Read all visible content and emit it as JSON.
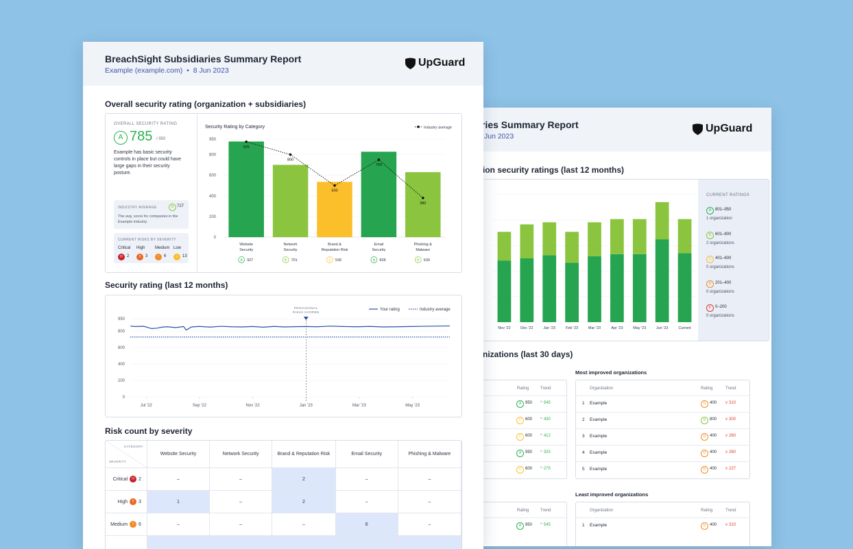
{
  "colors": {
    "accent": "#3d53a8",
    "grade_a": "#2bb04c",
    "grade_b": "#8bc53f",
    "grade_c": "#fbbf2b",
    "grade_d": "#f08c28",
    "grade_f": "#e03a30",
    "bar_dark": "#26a44f",
    "bar_light": "#8bc53f",
    "bar_yellow": "#fbbf2b",
    "line": "#2750a5"
  },
  "front": {
    "title": "BreachSight Subsidiaries Summary Report",
    "subtitle_company": "Example (example.com)",
    "subtitle_sep": "•",
    "subtitle_date": "8 Jun 2023",
    "logo": "UpGuard",
    "section1_title": "Overall security rating (organization + subsidiaries)",
    "overall": {
      "label": "OVERALL SECURITY RATING",
      "grade": "A",
      "score": "785",
      "max": "/ 950",
      "description": "Example has basic security controls in place but could have large gaps in their security posture.",
      "industry_label": "INDUSTRY AVERAGE",
      "industry_grade": "B",
      "industry_score": "727",
      "industry_desc": "The avg. score for companies in the Example industry.",
      "risks_label": "CURRENT RISKS BY SEVERITY",
      "risks": [
        {
          "name": "Critical",
          "icon": "!!!",
          "count": "2"
        },
        {
          "name": "High",
          "icon": "!!",
          "count": "3"
        },
        {
          "name": "Medium",
          "icon": "!",
          "count": "6"
        },
        {
          "name": "Low",
          "icon": "i",
          "count": "13"
        }
      ]
    },
    "section2_title": "Security rating (last 12 months)",
    "section3_title": "Risk count by severity",
    "risk_table": {
      "corner_category": "CATEGORY",
      "corner_severity": "SEVERITY",
      "columns": [
        "Website Security",
        "Network Security",
        "Brand & Reputation Risk",
        "Email Security",
        "Phishing & Malware"
      ],
      "rows": [
        {
          "label": "Critical",
          "icon": "!!!",
          "count": "2",
          "cells": [
            "–",
            "–",
            "2",
            "–",
            "–"
          ]
        },
        {
          "label": "High",
          "icon": "!!",
          "count": "3",
          "cells": [
            "1",
            "–",
            "2",
            "–",
            "–"
          ]
        },
        {
          "label": "Medium",
          "icon": "!",
          "count": "6",
          "cells": [
            "–",
            "–",
            "–",
            "6",
            "–"
          ]
        }
      ]
    }
  },
  "chart_data": [
    {
      "type": "bar",
      "title": "Security Rating by Category",
      "legend": "Industry average",
      "categories": [
        "Website Security",
        "Network Security",
        "Brand & Reputation Risk",
        "Email Security",
        "Phishing & Malware"
      ],
      "values": [
        927,
        701,
        536,
        828,
        630
      ],
      "industry_average": [
        925,
        800,
        500,
        750,
        380
      ],
      "industry_labels": [
        "925",
        "800",
        "500",
        "750",
        "380"
      ],
      "grades": [
        "A",
        "B",
        "C",
        "A",
        "B"
      ],
      "score_labels": [
        "927",
        "701",
        "536",
        "828",
        "630"
      ],
      "bar_colors": [
        "#26a44f",
        "#8bc53f",
        "#fbbf2b",
        "#26a44f",
        "#8bc53f"
      ],
      "ylim": [
        0,
        950
      ],
      "yticks": [
        0,
        200,
        400,
        600,
        800,
        950
      ]
    },
    {
      "type": "line",
      "title": "Security rating (last 12 months)",
      "legend_your": "Your rating",
      "legend_industry": "Industry average",
      "annotation": "PROVISIONAL RISKS SCORED",
      "annotation_x": 6.6,
      "xticks": [
        0.6,
        2.6,
        4.6,
        6.6,
        8.6,
        10.6
      ],
      "xtick_labels": [
        "Jul '22",
        "Sep '22",
        "Nov '22",
        "Jan '23",
        "Mar '23",
        "May '23"
      ],
      "yticks": [
        0,
        200,
        400,
        600,
        800,
        950
      ],
      "ylim": [
        0,
        950
      ],
      "xlim": [
        0,
        12
      ],
      "x": [
        0,
        0.2,
        0.5,
        0.8,
        1.0,
        1.2,
        1.4,
        1.7,
        2.0,
        2.1,
        2.3,
        2.6,
        3.0,
        3.4,
        3.8,
        4.2,
        4.6,
        5.0,
        5.4,
        5.8,
        6.2,
        6.6,
        7.0,
        7.5,
        8.0,
        8.5,
        9.0,
        9.5,
        10.0,
        10.5,
        11.0,
        11.5,
        12.0
      ],
      "your_rating": [
        860,
        855,
        858,
        830,
        835,
        848,
        852,
        842,
        855,
        812,
        850,
        856,
        848,
        858,
        852,
        850,
        855,
        847,
        856,
        850,
        853,
        855,
        852,
        860,
        855,
        852,
        856,
        850,
        852,
        855,
        858,
        860,
        862
      ],
      "industry_average": [
        727,
        727
      ]
    },
    {
      "type": "bar",
      "title": "Organization security ratings (last 12 months)",
      "categories": [
        "Nov '22",
        "Dec '22",
        "Jan '23",
        "Feb '23",
        "Mar '23",
        "Apr '23",
        "May '23",
        "Jun '23",
        "Current"
      ],
      "series": [
        {
          "name": "801-950",
          "values": [
            1,
            1,
            1,
            1,
            1,
            1,
            1,
            1,
            1
          ]
        },
        {
          "name": "601-800",
          "values": [
            2,
            2,
            2,
            2,
            2,
            2,
            2,
            2,
            2
          ]
        }
      ],
      "dark_heights": [
        580,
        600,
        630,
        560,
        620,
        640,
        640,
        780,
        650
      ],
      "light_heights": [
        270,
        320,
        310,
        290,
        320,
        330,
        330,
        350,
        320
      ],
      "ylim": [
        0,
        1200
      ]
    }
  ],
  "back": {
    "title": "ries Summary Report",
    "subtitle": "Jun 2023",
    "logo": "UpGuard",
    "section1_title": "ion security ratings (last 12 months)",
    "legend_label": "CURRENT RATINGS",
    "legend": [
      {
        "grade": "A",
        "range": "801–950",
        "count": "1 organization"
      },
      {
        "grade": "B",
        "range": "601–800",
        "count": "2 organizations"
      },
      {
        "grade": "C",
        "range": "401–600",
        "count": "0 organizations"
      },
      {
        "grade": "D",
        "range": "201–400",
        "count": "0 organizations"
      },
      {
        "grade": "F",
        "range": "0–200",
        "count": "0 organizations"
      }
    ],
    "section2_title": "nizations (last 30 days)",
    "col_rating": "Rating",
    "col_trend": "Trend",
    "col_org": "Organization",
    "left_rows": [
      {
        "grade": "A",
        "score": "950",
        "trend": "545"
      },
      {
        "grade": "C",
        "score": "600",
        "trend": "430"
      },
      {
        "grade": "C",
        "score": "600",
        "trend": "412"
      },
      {
        "grade": "A",
        "score": "950",
        "trend": "333"
      },
      {
        "grade": "C",
        "score": "600",
        "trend": "275"
      }
    ],
    "improved_title": "Most improved organizations",
    "improved": [
      {
        "rank": "1",
        "name": "Example",
        "grade": "D",
        "score": "400",
        "trend": "310"
      },
      {
        "rank": "2",
        "name": "Example",
        "grade": "B",
        "score": "800",
        "trend": "300"
      },
      {
        "rank": "3",
        "name": "Example",
        "grade": "D",
        "score": "400",
        "trend": "260"
      },
      {
        "rank": "4",
        "name": "Example",
        "grade": "D",
        "score": "400",
        "trend": "260"
      },
      {
        "rank": "5",
        "name": "Example",
        "grade": "D",
        "score": "400",
        "trend": "227"
      }
    ],
    "least_title": "Least improved organizations",
    "least_left": [
      {
        "grade": "A",
        "score": "950",
        "trend": "545"
      }
    ],
    "least": [
      {
        "rank": "1",
        "name": "Example",
        "grade": "D",
        "score": "400",
        "trend": "310"
      }
    ]
  }
}
